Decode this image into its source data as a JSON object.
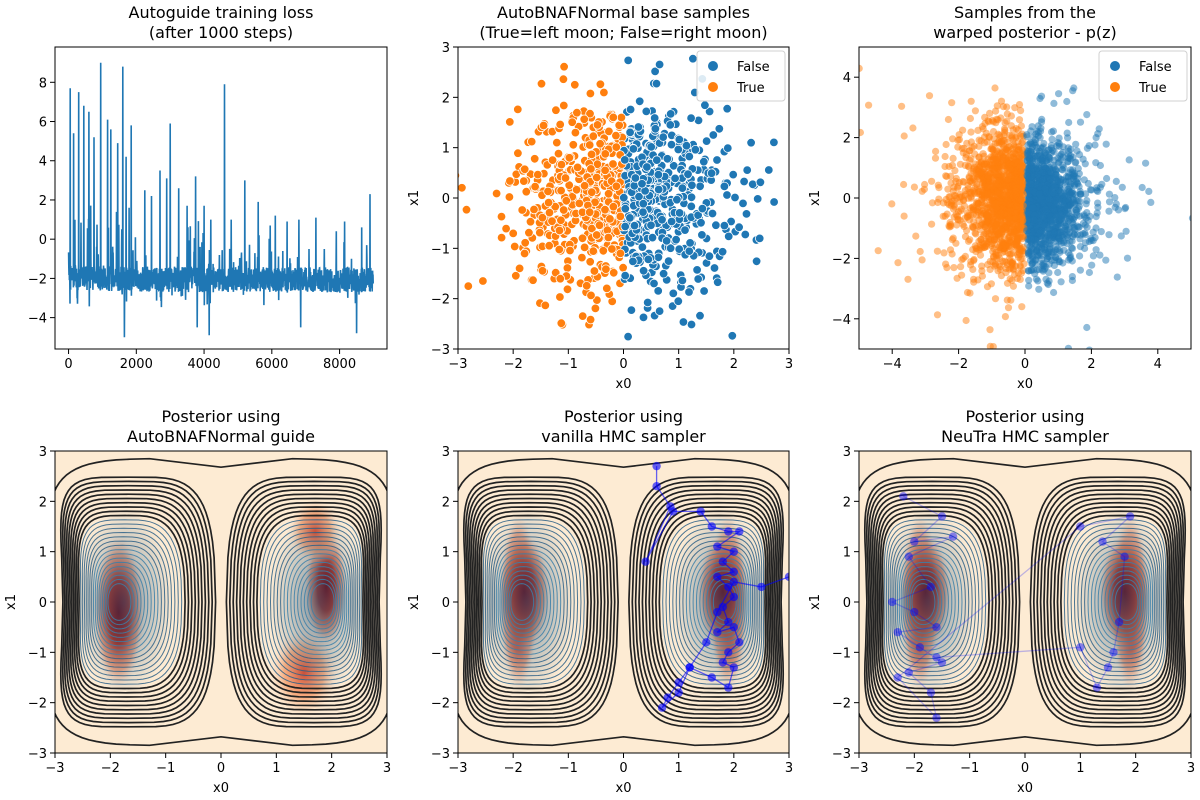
{
  "chart_data": [
    {
      "type": "line",
      "title": "Autoguide training loss\n(after 1000 steps)",
      "xlabel": "",
      "ylabel": "",
      "xlim": [
        -400,
        9400
      ],
      "ylim": [
        -5.6,
        9.8
      ],
      "xticks": [
        0,
        2000,
        4000,
        6000,
        8000
      ],
      "yticks": [
        -4,
        -2,
        0,
        2,
        4,
        6,
        8
      ],
      "series": [
        {
          "color": "#1f77b4",
          "n_points": 9000,
          "typical_range": [
            -3.0,
            -1.0
          ],
          "spikes": [
            [
              50,
              7.7
            ],
            [
              150,
              5.4
            ],
            [
              300,
              7.5
            ],
            [
              450,
              6.8
            ],
            [
              600,
              6.5
            ],
            [
              750,
              5.2
            ],
            [
              950,
              9.0
            ],
            [
              1150,
              6.1
            ],
            [
              1250,
              5.6
            ],
            [
              1450,
              4.9
            ],
            [
              1600,
              8.8
            ],
            [
              1700,
              4.2
            ],
            [
              1850,
              5.8
            ],
            [
              2250,
              2.5
            ],
            [
              2450,
              2.2
            ],
            [
              2700,
              3.5
            ],
            [
              2900,
              3.1
            ],
            [
              3000,
              5.9
            ],
            [
              3250,
              2.6
            ],
            [
              3500,
              1.7
            ],
            [
              3750,
              3.2
            ],
            [
              4000,
              1.7
            ],
            [
              4200,
              1.0
            ],
            [
              4600,
              7.9
            ],
            [
              4800,
              1.0
            ],
            [
              5200,
              3.0
            ],
            [
              5600,
              1.9
            ],
            [
              5950,
              0.7
            ],
            [
              6100,
              1.2
            ],
            [
              6450,
              0.9
            ],
            [
              6800,
              1.0
            ],
            [
              7100,
              -0.5
            ],
            [
              7300,
              1.1
            ],
            [
              7550,
              -0.5
            ],
            [
              7900,
              0.4
            ],
            [
              8150,
              0.9
            ],
            [
              8350,
              -1.0
            ],
            [
              8650,
              0.6
            ],
            [
              8800,
              -0.3
            ],
            [
              8900,
              2.3
            ]
          ],
          "dips": [
            [
              1650,
              -5.0
            ],
            [
              3800,
              -4.5
            ],
            [
              4150,
              -4.9
            ],
            [
              6850,
              -4.5
            ],
            [
              8500,
              -4.8
            ]
          ]
        }
      ]
    },
    {
      "type": "scatter",
      "title": "AutoBNAFNormal base samples\n(True=left moon; False=right moon)",
      "xlabel": "x0",
      "ylabel": "x1",
      "xlim": [
        -3,
        3
      ],
      "ylim": [
        -3,
        3
      ],
      "xticks": [
        -3,
        -2,
        -1,
        0,
        1,
        2,
        3
      ],
      "yticks": [
        -3,
        -2,
        -1,
        0,
        1,
        2,
        3
      ],
      "legend": {
        "position": "top-right",
        "entries": [
          "False",
          "True"
        ]
      },
      "series": [
        {
          "name": "False",
          "color": "#1f77b4",
          "x_range": [
            0,
            3
          ],
          "y_range": [
            -2.6,
            2.6
          ],
          "count": 500
        },
        {
          "name": "True",
          "color": "#ff7f0e",
          "x_range": [
            -3,
            0
          ],
          "y_range": [
            -2.6,
            3.0
          ],
          "count": 500
        }
      ]
    },
    {
      "type": "scatter",
      "title": "Samples from the\nwarped posterior - p(z)",
      "xlabel": "x0",
      "ylabel": "x1",
      "xlim": [
        -5,
        5
      ],
      "ylim": [
        -5,
        5
      ],
      "xticks": [
        -4,
        -2,
        0,
        2,
        4
      ],
      "yticks": [
        -4,
        -2,
        0,
        2,
        4
      ],
      "legend": {
        "position": "top-right",
        "entries": [
          "False",
          "True"
        ]
      },
      "series": [
        {
          "name": "False",
          "color": "#1f77b4",
          "x_range": [
            0,
            4.4
          ],
          "y_range": [
            -4.9,
            2.6
          ],
          "count": 2000
        },
        {
          "name": "True",
          "color": "#ff7f0e",
          "x_range": [
            -5,
            0
          ],
          "y_range": [
            -4.5,
            4.9
          ],
          "count": 2000
        }
      ]
    },
    {
      "type": "heatmap",
      "title": "Posterior using\nAutoBNAFNormal guide",
      "xlabel": "x0",
      "ylabel": "x1",
      "xlim": [
        -3,
        3
      ],
      "ylim": [
        -3,
        3
      ],
      "xticks": [
        -3,
        -2,
        -1,
        0,
        1,
        2,
        3
      ],
      "yticks": [
        -3,
        -2,
        -1,
        0,
        1,
        2,
        3
      ],
      "modes": [
        [
          -1.85,
          -0.2
        ],
        [
          1.85,
          0.25
        ]
      ]
    },
    {
      "type": "heatmap",
      "title": "Posterior using\nvanilla HMC sampler",
      "xlabel": "x0",
      "ylabel": "x1",
      "xlim": [
        -3,
        3
      ],
      "ylim": [
        -3,
        3
      ],
      "xticks": [
        -3,
        -2,
        -1,
        0,
        1,
        2,
        3
      ],
      "yticks": [
        -3,
        -2,
        -1,
        0,
        1,
        2,
        3
      ],
      "trace_color": "#0000ff",
      "trace": [
        [
          0.6,
          2.7
        ],
        [
          0.6,
          2.3
        ],
        [
          0.85,
          1.9
        ],
        [
          0.4,
          0.8
        ],
        [
          0.9,
          1.8
        ],
        [
          1.4,
          1.8
        ],
        [
          1.6,
          1.5
        ],
        [
          1.9,
          1.4
        ],
        [
          2.1,
          1.4
        ],
        [
          1.7,
          1.1
        ],
        [
          2.0,
          1.0
        ],
        [
          1.8,
          0.8
        ],
        [
          2.0,
          0.6
        ],
        [
          1.7,
          0.5
        ],
        [
          1.9,
          0.3
        ],
        [
          2.0,
          0.1
        ],
        [
          1.8,
          -0.1
        ],
        [
          1.9,
          -0.4
        ],
        [
          1.7,
          -0.6
        ],
        [
          2.0,
          -0.5
        ],
        [
          2.1,
          -0.8
        ],
        [
          1.9,
          -1.0
        ],
        [
          1.8,
          -1.2
        ],
        [
          2.0,
          -1.3
        ],
        [
          1.9,
          -1.7
        ],
        [
          1.6,
          -1.5
        ],
        [
          1.2,
          -1.3
        ],
        [
          1.0,
          -1.6
        ],
        [
          0.8,
          -1.9
        ],
        [
          0.7,
          -2.1
        ],
        [
          1.0,
          -1.8
        ],
        [
          1.2,
          -1.3
        ],
        [
          1.5,
          -0.8
        ],
        [
          1.7,
          -0.2
        ],
        [
          2.0,
          0.4
        ],
        [
          2.5,
          0.3
        ],
        [
          3.0,
          0.5
        ]
      ]
    },
    {
      "type": "heatmap",
      "title": "Posterior using\nNeuTra HMC sampler",
      "xlabel": "x0",
      "ylabel": "x1",
      "xlim": [
        -3,
        3
      ],
      "ylim": [
        -3,
        3
      ],
      "xticks": [
        -3,
        -2,
        -1,
        0,
        1,
        2,
        3
      ],
      "yticks": [
        -3,
        -2,
        -1,
        0,
        1,
        2,
        3
      ],
      "trace_color": "#0000ff",
      "trace": [
        [
          -2.2,
          2.1
        ],
        [
          -1.5,
          1.7
        ],
        [
          -2.0,
          1.2
        ],
        [
          -1.3,
          1.3
        ],
        [
          -2.1,
          0.9
        ],
        [
          -1.7,
          0.3
        ],
        [
          -2.4,
          0.0
        ],
        [
          -2.0,
          -0.2
        ],
        [
          -1.6,
          -0.5
        ],
        [
          -2.3,
          -0.6
        ],
        [
          -1.9,
          -0.9
        ],
        [
          -1.5,
          -1.2
        ],
        [
          -2.1,
          -1.4
        ],
        [
          -1.7,
          -1.8
        ],
        [
          -1.6,
          -2.3
        ],
        [
          -2.3,
          -1.5
        ],
        [
          1.0,
          1.5
        ],
        [
          1.9,
          1.7
        ],
        [
          1.4,
          1.2
        ],
        [
          1.8,
          0.9
        ],
        [
          1.7,
          -0.4
        ],
        [
          1.6,
          -1.0
        ],
        [
          1.5,
          -1.3
        ],
        [
          1.3,
          -1.7
        ],
        [
          1.0,
          -0.9
        ],
        [
          -1.6,
          -1.1
        ]
      ]
    }
  ]
}
